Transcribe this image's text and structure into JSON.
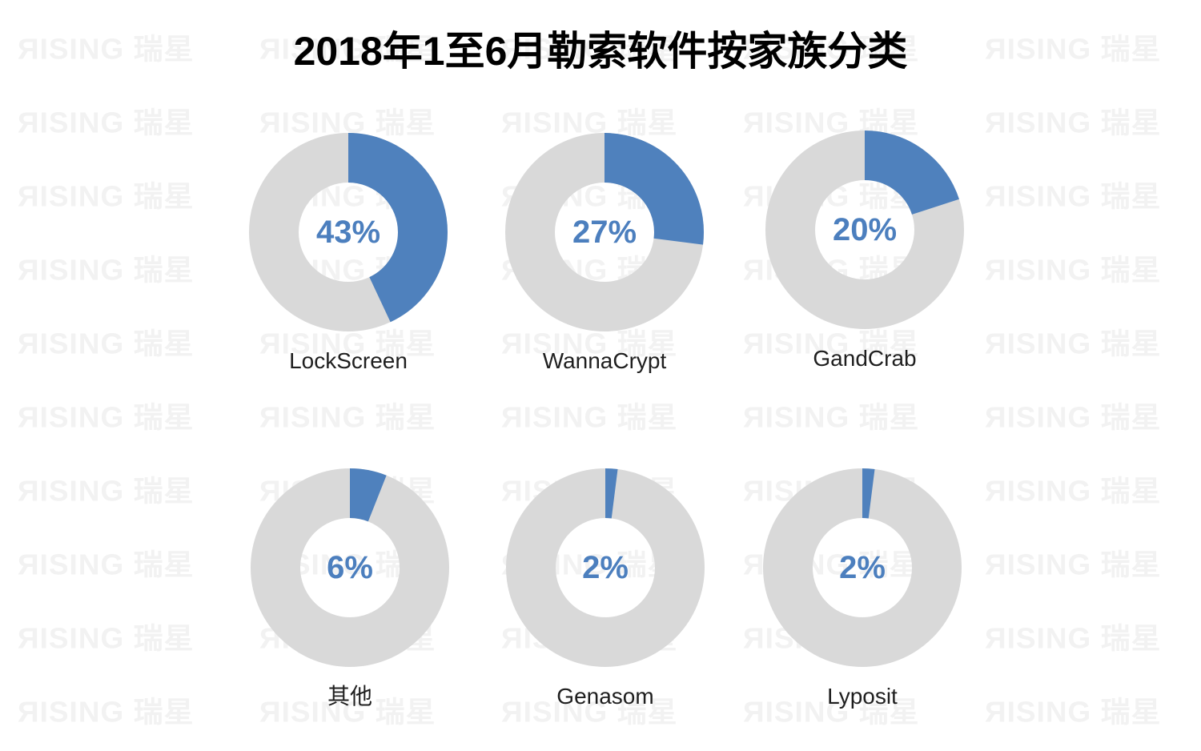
{
  "title": "2018年1至6月勒索软件按家族分类",
  "watermark": {
    "brand": "RISING 瑞星",
    "display_text": "ЯISING 瑞星",
    "color": "#f2f2f2"
  },
  "colors": {
    "slice_blue": "#4f81bd",
    "ring_gray": "#d9d9d9",
    "percent_text_blue": "#4c7fbe",
    "title_black": "#000000",
    "background": "#ffffff"
  },
  "chart_data": {
    "type": "pie",
    "subtype": "donut-grid",
    "title": "2018年1至6月勒索软件按家族分类",
    "unit": "percent",
    "slice_start": "top",
    "direction": "clockwise",
    "grid": {
      "rows": 2,
      "cols": 3
    },
    "items": [
      {
        "label": "LockScreen",
        "value": 43,
        "pct_label": "43%"
      },
      {
        "label": "WannaCrypt",
        "value": 27,
        "pct_label": "27%"
      },
      {
        "label": "GandCrab",
        "value": 20,
        "pct_label": "20%"
      },
      {
        "label": "其他",
        "value": 6,
        "pct_label": "6%"
      },
      {
        "label": "Genasom",
        "value": 2,
        "pct_label": "2%"
      },
      {
        "label": "Lyposit",
        "value": 2,
        "pct_label": "2%"
      }
    ]
  }
}
